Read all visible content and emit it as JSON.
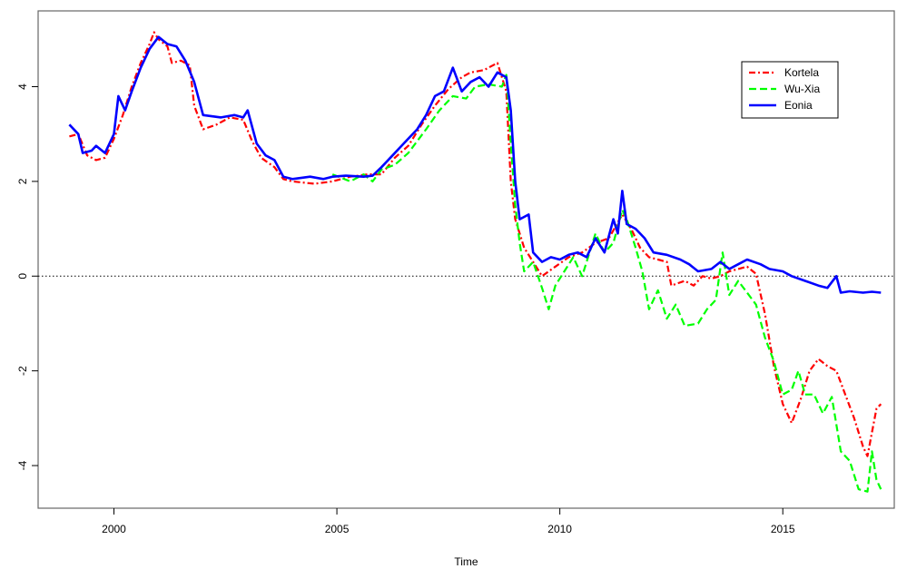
{
  "chart_data": {
    "type": "line",
    "xlabel": "Time",
    "ylabel": "",
    "xlim": [
      1998.3,
      2017.5
    ],
    "ylim": [
      -4.9,
      5.6
    ],
    "x_ticks": [
      2000,
      2005,
      2010,
      2015
    ],
    "x_tick_labels": [
      "2000",
      "2005",
      "2010",
      "2015"
    ],
    "y_ticks": [
      -4,
      -2,
      0,
      2,
      4
    ],
    "y_tick_labels": [
      "-4",
      "-2",
      "0",
      "2",
      "4"
    ],
    "reference_line": {
      "y": 0,
      "style": "dotted"
    },
    "legend": {
      "position": "top-right"
    },
    "series": [
      {
        "name": "Kortela",
        "color": "#ff0000",
        "dash": "dot-dash",
        "points": [
          [
            1999.0,
            2.95
          ],
          [
            1999.2,
            3.0
          ],
          [
            1999.4,
            2.55
          ],
          [
            1999.6,
            2.45
          ],
          [
            1999.8,
            2.5
          ],
          [
            2000.0,
            2.9
          ],
          [
            2000.2,
            3.4
          ],
          [
            2000.4,
            4.0
          ],
          [
            2000.6,
            4.5
          ],
          [
            2000.8,
            4.9
          ],
          [
            2000.9,
            5.15
          ],
          [
            2001.0,
            5.0
          ],
          [
            2001.2,
            4.85
          ],
          [
            2001.3,
            4.5
          ],
          [
            2001.5,
            4.55
          ],
          [
            2001.7,
            4.45
          ],
          [
            2001.8,
            3.6
          ],
          [
            2002.0,
            3.1
          ],
          [
            2002.3,
            3.2
          ],
          [
            2002.6,
            3.35
          ],
          [
            2002.9,
            3.3
          ],
          [
            2003.1,
            2.85
          ],
          [
            2003.3,
            2.5
          ],
          [
            2003.6,
            2.3
          ],
          [
            2003.8,
            2.05
          ],
          [
            2004.0,
            2.0
          ],
          [
            2004.5,
            1.95
          ],
          [
            2004.9,
            2.0
          ],
          [
            2005.3,
            2.1
          ],
          [
            2005.7,
            2.15
          ],
          [
            2006.0,
            2.15
          ],
          [
            2006.3,
            2.5
          ],
          [
            2006.6,
            2.75
          ],
          [
            2006.9,
            3.2
          ],
          [
            2007.2,
            3.6
          ],
          [
            2007.5,
            3.95
          ],
          [
            2007.8,
            4.2
          ],
          [
            2008.0,
            4.3
          ],
          [
            2008.3,
            4.35
          ],
          [
            2008.6,
            4.5
          ],
          [
            2008.8,
            3.9
          ],
          [
            2008.9,
            2.0
          ],
          [
            2009.0,
            1.2
          ],
          [
            2009.2,
            0.6
          ],
          [
            2009.4,
            0.3
          ],
          [
            2009.6,
            0.0
          ],
          [
            2009.9,
            0.2
          ],
          [
            2010.2,
            0.4
          ],
          [
            2010.5,
            0.5
          ],
          [
            2010.8,
            0.7
          ],
          [
            2011.1,
            0.8
          ],
          [
            2011.4,
            1.3
          ],
          [
            2011.6,
            1.0
          ],
          [
            2011.8,
            0.6
          ],
          [
            2012.0,
            0.4
          ],
          [
            2012.2,
            0.35
          ],
          [
            2012.4,
            0.3
          ],
          [
            2012.5,
            -0.2
          ],
          [
            2012.8,
            -0.1
          ],
          [
            2013.0,
            -0.2
          ],
          [
            2013.2,
            0.0
          ],
          [
            2013.4,
            -0.05
          ],
          [
            2013.6,
            0.0
          ],
          [
            2013.8,
            0.1
          ],
          [
            2014.0,
            0.15
          ],
          [
            2014.2,
            0.2
          ],
          [
            2014.4,
            0.05
          ],
          [
            2014.6,
            -0.8
          ],
          [
            2014.8,
            -1.9
          ],
          [
            2015.0,
            -2.7
          ],
          [
            2015.2,
            -3.1
          ],
          [
            2015.4,
            -2.6
          ],
          [
            2015.6,
            -2.0
          ],
          [
            2015.8,
            -1.75
          ],
          [
            2016.0,
            -1.9
          ],
          [
            2016.2,
            -2.0
          ],
          [
            2016.4,
            -2.5
          ],
          [
            2016.6,
            -3.0
          ],
          [
            2016.8,
            -3.6
          ],
          [
            2016.9,
            -3.8
          ],
          [
            2017.0,
            -3.3
          ],
          [
            2017.1,
            -2.8
          ],
          [
            2017.2,
            -2.7
          ]
        ]
      },
      {
        "name": "Wu-Xia",
        "color": "#00ff00",
        "dash": "dashed",
        "points": [
          [
            2004.9,
            2.15
          ],
          [
            2005.3,
            2.0
          ],
          [
            2005.6,
            2.15
          ],
          [
            2005.8,
            2.0
          ],
          [
            2006.0,
            2.25
          ],
          [
            2006.3,
            2.35
          ],
          [
            2006.6,
            2.6
          ],
          [
            2007.0,
            3.1
          ],
          [
            2007.3,
            3.5
          ],
          [
            2007.6,
            3.8
          ],
          [
            2007.9,
            3.75
          ],
          [
            2008.1,
            4.0
          ],
          [
            2008.4,
            4.05
          ],
          [
            2008.7,
            4.0
          ],
          [
            2008.8,
            4.25
          ],
          [
            2008.9,
            2.8
          ],
          [
            2009.0,
            1.5
          ],
          [
            2009.1,
            0.7
          ],
          [
            2009.2,
            0.1
          ],
          [
            2009.4,
            0.3
          ],
          [
            2009.6,
            -0.25
          ],
          [
            2009.75,
            -0.7
          ],
          [
            2009.9,
            -0.2
          ],
          [
            2010.1,
            0.1
          ],
          [
            2010.3,
            0.4
          ],
          [
            2010.5,
            0.0
          ],
          [
            2010.7,
            0.6
          ],
          [
            2010.8,
            0.9
          ],
          [
            2011.0,
            0.5
          ],
          [
            2011.2,
            0.7
          ],
          [
            2011.4,
            1.4
          ],
          [
            2011.5,
            1.2
          ],
          [
            2011.7,
            0.6
          ],
          [
            2011.85,
            0.1
          ],
          [
            2012.0,
            -0.7
          ],
          [
            2012.2,
            -0.3
          ],
          [
            2012.4,
            -0.9
          ],
          [
            2012.6,
            -0.6
          ],
          [
            2012.8,
            -1.05
          ],
          [
            2013.1,
            -1.0
          ],
          [
            2013.3,
            -0.7
          ],
          [
            2013.5,
            -0.5
          ],
          [
            2013.65,
            0.5
          ],
          [
            2013.8,
            -0.4
          ],
          [
            2014.0,
            -0.1
          ],
          [
            2014.2,
            -0.35
          ],
          [
            2014.4,
            -0.6
          ],
          [
            2014.6,
            -1.3
          ],
          [
            2014.8,
            -1.8
          ],
          [
            2015.0,
            -2.5
          ],
          [
            2015.2,
            -2.4
          ],
          [
            2015.35,
            -2.0
          ],
          [
            2015.5,
            -2.5
          ],
          [
            2015.7,
            -2.5
          ],
          [
            2015.9,
            -2.9
          ],
          [
            2016.1,
            -2.55
          ],
          [
            2016.3,
            -3.7
          ],
          [
            2016.5,
            -3.9
          ],
          [
            2016.7,
            -4.5
          ],
          [
            2016.9,
            -4.55
          ],
          [
            2017.0,
            -3.7
          ],
          [
            2017.1,
            -4.3
          ],
          [
            2017.2,
            -4.5
          ]
        ]
      },
      {
        "name": "Eonia",
        "color": "#0000ff",
        "dash": "solid",
        "points": [
          [
            1999.0,
            3.2
          ],
          [
            1999.2,
            3.0
          ],
          [
            1999.3,
            2.6
          ],
          [
            1999.5,
            2.65
          ],
          [
            1999.6,
            2.75
          ],
          [
            1999.8,
            2.6
          ],
          [
            2000.0,
            3.0
          ],
          [
            2000.1,
            3.8
          ],
          [
            2000.25,
            3.5
          ],
          [
            2000.4,
            3.9
          ],
          [
            2000.6,
            4.4
          ],
          [
            2000.8,
            4.8
          ],
          [
            2001.0,
            5.05
          ],
          [
            2001.2,
            4.9
          ],
          [
            2001.4,
            4.85
          ],
          [
            2001.6,
            4.55
          ],
          [
            2001.8,
            4.1
          ],
          [
            2002.0,
            3.4
          ],
          [
            2002.4,
            3.35
          ],
          [
            2002.7,
            3.4
          ],
          [
            2002.9,
            3.35
          ],
          [
            2003.0,
            3.5
          ],
          [
            2003.2,
            2.8
          ],
          [
            2003.4,
            2.55
          ],
          [
            2003.6,
            2.45
          ],
          [
            2003.8,
            2.1
          ],
          [
            2004.0,
            2.05
          ],
          [
            2004.4,
            2.1
          ],
          [
            2004.7,
            2.05
          ],
          [
            2004.9,
            2.1
          ],
          [
            2005.2,
            2.12
          ],
          [
            2005.6,
            2.1
          ],
          [
            2005.8,
            2.12
          ],
          [
            2006.0,
            2.3
          ],
          [
            2006.2,
            2.5
          ],
          [
            2006.5,
            2.8
          ],
          [
            2006.8,
            3.1
          ],
          [
            2007.0,
            3.4
          ],
          [
            2007.2,
            3.8
          ],
          [
            2007.4,
            3.9
          ],
          [
            2007.6,
            4.4
          ],
          [
            2007.8,
            3.9
          ],
          [
            2008.0,
            4.1
          ],
          [
            2008.2,
            4.2
          ],
          [
            2008.4,
            4.0
          ],
          [
            2008.6,
            4.3
          ],
          [
            2008.8,
            4.2
          ],
          [
            2008.9,
            3.5
          ],
          [
            2009.0,
            2.0
          ],
          [
            2009.1,
            1.2
          ],
          [
            2009.3,
            1.3
          ],
          [
            2009.4,
            0.5
          ],
          [
            2009.6,
            0.3
          ],
          [
            2009.8,
            0.4
          ],
          [
            2010.0,
            0.35
          ],
          [
            2010.2,
            0.45
          ],
          [
            2010.4,
            0.5
          ],
          [
            2010.6,
            0.4
          ],
          [
            2010.8,
            0.8
          ],
          [
            2011.0,
            0.5
          ],
          [
            2011.2,
            1.2
          ],
          [
            2011.3,
            0.9
          ],
          [
            2011.4,
            1.8
          ],
          [
            2011.5,
            1.1
          ],
          [
            2011.7,
            1.0
          ],
          [
            2011.9,
            0.8
          ],
          [
            2012.1,
            0.5
          ],
          [
            2012.4,
            0.45
          ],
          [
            2012.7,
            0.35
          ],
          [
            2012.9,
            0.25
          ],
          [
            2013.1,
            0.1
          ],
          [
            2013.4,
            0.15
          ],
          [
            2013.6,
            0.3
          ],
          [
            2013.8,
            0.15
          ],
          [
            2014.0,
            0.25
          ],
          [
            2014.2,
            0.35
          ],
          [
            2014.5,
            0.25
          ],
          [
            2014.7,
            0.15
          ],
          [
            2015.0,
            0.1
          ],
          [
            2015.2,
            0.0
          ],
          [
            2015.5,
            -0.1
          ],
          [
            2015.8,
            -0.2
          ],
          [
            2016.0,
            -0.25
          ],
          [
            2016.2,
            0.0
          ],
          [
            2016.3,
            -0.35
          ],
          [
            2016.5,
            -0.32
          ],
          [
            2016.8,
            -0.35
          ],
          [
            2017.0,
            -0.33
          ],
          [
            2017.2,
            -0.35
          ]
        ]
      }
    ]
  }
}
